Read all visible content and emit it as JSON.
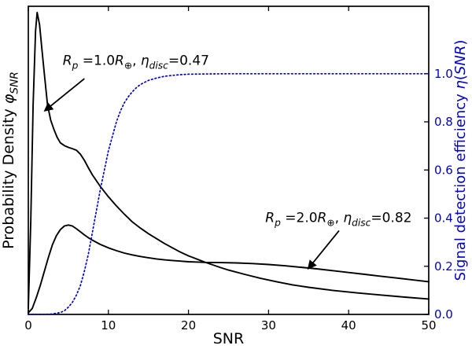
{
  "chart_data": {
    "type": "line",
    "title": "",
    "xlabel": "SNR",
    "ylabel_left": "Probability Density φ_SNR",
    "ylabel_right": "Signal detection efficiency η(SNR)",
    "xlim": [
      0,
      50
    ],
    "ylim_left_fraction": [
      0,
      1
    ],
    "ylim_right": [
      0,
      1.28
    ],
    "grid": false,
    "legend": "none",
    "colors": {
      "pdf_curves": "#000000",
      "efficiency_curve": "#0000cd",
      "right_axis": "#0000cc",
      "axis_lines": "#000000"
    },
    "x_ticks": {
      "values": [
        0,
        10,
        20,
        30,
        40,
        50
      ],
      "labels": [
        "0",
        "10",
        "20",
        "30",
        "40",
        "50"
      ]
    },
    "right_ticks": {
      "values": [
        0.0,
        0.2,
        0.4,
        0.6,
        0.8,
        1.0
      ],
      "labels": [
        "0.0",
        "0.2",
        "0.4",
        "0.6",
        "0.8",
        "1.0"
      ]
    },
    "ylabel_left_segments": [
      {
        "t": "Probability Density "
      },
      {
        "t": "φ",
        "i": true
      },
      {
        "t": "SNR",
        "i": true,
        "sub": true
      }
    ],
    "ylabel_right_segments": [
      {
        "t": "Signal detection efficiency "
      },
      {
        "t": "η",
        "i": true
      },
      {
        "t": "("
      },
      {
        "t": "SNR",
        "i": true
      },
      {
        "t": ")"
      }
    ],
    "series": [
      {
        "name": "pdf-rp1",
        "label": "Rp = 1.0 R⊕ probability density",
        "axis": "left",
        "color": "#000000",
        "style": "solid",
        "width": 1.9,
        "x": [
          0,
          0.3,
          0.6,
          0.9,
          1.1,
          1.4,
          1.7,
          2.0,
          2.4,
          2.8,
          3.2,
          3.6,
          4.0,
          4.5,
          5.0,
          5.5,
          6.0,
          6.5,
          7.0,
          7.5,
          8.0,
          9.0,
          10,
          11,
          12,
          13,
          14,
          15,
          16,
          17,
          18,
          19,
          20,
          21,
          22,
          23,
          24,
          25,
          27,
          29,
          31,
          33,
          35,
          38,
          41,
          44,
          47,
          50
        ],
        "y": [
          0.02,
          0.3,
          0.68,
          0.92,
          0.98,
          0.94,
          0.86,
          0.78,
          0.68,
          0.63,
          0.6,
          0.575,
          0.557,
          0.548,
          0.542,
          0.538,
          0.533,
          0.52,
          0.5,
          0.476,
          0.453,
          0.415,
          0.382,
          0.352,
          0.325,
          0.3,
          0.28,
          0.262,
          0.246,
          0.23,
          0.216,
          0.202,
          0.19,
          0.18,
          0.17,
          0.161,
          0.152,
          0.144,
          0.13,
          0.117,
          0.106,
          0.096,
          0.088,
          0.078,
          0.07,
          0.063,
          0.056,
          0.05
        ]
      },
      {
        "name": "pdf-rp2",
        "label": "Rp = 2.0 R⊕ probability density",
        "axis": "left",
        "color": "#000000",
        "style": "solid",
        "width": 1.9,
        "x": [
          0,
          0.5,
          1,
          1.5,
          2,
          2.5,
          3,
          3.5,
          4,
          4.5,
          5,
          5.5,
          6,
          6.5,
          7,
          7.5,
          8,
          9,
          10,
          11,
          12,
          13,
          14,
          15,
          16,
          17,
          18,
          19,
          20,
          22,
          24,
          26,
          28,
          30,
          32,
          34,
          36,
          38,
          40,
          42,
          44,
          46,
          48,
          50
        ],
        "y": [
          0.005,
          0.02,
          0.055,
          0.095,
          0.14,
          0.185,
          0.225,
          0.255,
          0.275,
          0.287,
          0.29,
          0.287,
          0.278,
          0.268,
          0.258,
          0.249,
          0.241,
          0.227,
          0.216,
          0.207,
          0.199,
          0.193,
          0.188,
          0.184,
          0.18,
          0.177,
          0.175,
          0.173,
          0.171,
          0.169,
          0.168,
          0.167,
          0.165,
          0.162,
          0.158,
          0.153,
          0.148,
          0.142,
          0.136,
          0.13,
          0.124,
          0.118,
          0.112,
          0.106
        ]
      },
      {
        "name": "detection-efficiency",
        "label": "η(SNR) signal detection efficiency",
        "axis": "right",
        "color": "#0000cd",
        "style": "dotted",
        "width": 1.7,
        "x": [
          0,
          2,
          3,
          4,
          4.5,
          5,
          5.5,
          6,
          6.5,
          7,
          7.5,
          8,
          8.5,
          9,
          9.5,
          10,
          10.5,
          11,
          11.5,
          12,
          12.5,
          13,
          13.5,
          14,
          15,
          16,
          17,
          18,
          19,
          20,
          22,
          25,
          30,
          40,
          50
        ],
        "y": [
          0,
          0,
          0.002,
          0.008,
          0.015,
          0.03,
          0.05,
          0.08,
          0.12,
          0.18,
          0.25,
          0.34,
          0.43,
          0.52,
          0.6,
          0.68,
          0.74,
          0.8,
          0.845,
          0.88,
          0.905,
          0.925,
          0.942,
          0.955,
          0.972,
          0.982,
          0.989,
          0.993,
          0.996,
          0.998,
          0.999,
          1.0,
          1.0,
          1.0,
          1.0
        ]
      }
    ],
    "annotations": [
      {
        "text": "Rp =1.0R⊕,  ηdisc=0.47",
        "segments": [
          {
            "t": "R",
            "i": true
          },
          {
            "t": "p",
            "i": true,
            "sub": true
          },
          {
            "t": " =1.0",
            "i": false
          },
          {
            "t": "R",
            "i": true
          },
          {
            "t": "⊕",
            "sub": true
          },
          {
            "t": ",  "
          },
          {
            "t": "η",
            "i": true
          },
          {
            "t": "disc",
            "i": true,
            "sub": true
          },
          {
            "t": "=0.47"
          }
        ],
        "xy": [
          4.3,
          0.81
        ],
        "arrow_from": [
          7.0,
          0.765
        ],
        "arrow_to": [
          2.1,
          0.662
        ]
      },
      {
        "text": "Rp =2.0R⊕,  ηdisc=0.82",
        "segments": [
          {
            "t": "R",
            "i": true
          },
          {
            "t": "p",
            "i": true,
            "sub": true
          },
          {
            "t": " =2.0",
            "i": false
          },
          {
            "t": "R",
            "i": true
          },
          {
            "t": "⊕",
            "sub": true
          },
          {
            "t": ",  "
          },
          {
            "t": "η",
            "i": true
          },
          {
            "t": "disc",
            "i": true,
            "sub": true
          },
          {
            "t": "=0.82"
          }
        ],
        "xy": [
          29.6,
          0.3
        ],
        "arrow_from": [
          38.8,
          0.272
        ],
        "arrow_to": [
          35.0,
          0.15
        ]
      }
    ]
  }
}
